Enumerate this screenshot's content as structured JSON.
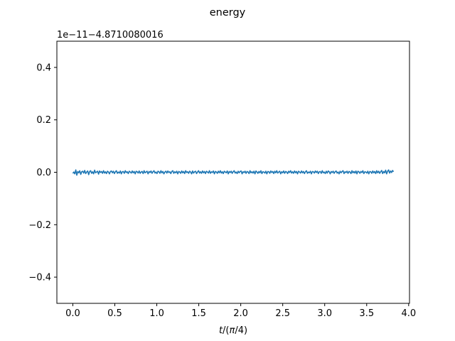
{
  "chart_data": {
    "type": "line",
    "title": "energy",
    "xlabel": "t/(π/4)",
    "ylabel": "",
    "offset_text": "1e−11−4.8710080016",
    "xlim": [
      -0.19,
      4.01
    ],
    "ylim": [
      -0.5,
      0.5
    ],
    "xticks": [
      0.0,
      0.5,
      1.0,
      1.5,
      2.0,
      2.5,
      3.0,
      3.5,
      4.0
    ],
    "xtick_labels": [
      "0.0",
      "0.5",
      "1.0",
      "1.5",
      "2.0",
      "2.5",
      "3.0",
      "3.5",
      "4.0"
    ],
    "yticks": [
      -0.4,
      -0.2,
      0.0,
      0.2,
      0.4
    ],
    "ytick_labels": [
      "−0.4",
      "−0.2",
      "0.0",
      "0.2",
      "0.4"
    ],
    "grid": false,
    "legend": "none",
    "series": [
      {
        "color": "#1f77b4",
        "x_start": 0.0,
        "x_end": 3.82,
        "values": [
          -0.004,
          0.001,
          -0.006,
          0.009,
          -0.011,
          0.003,
          -0.002,
          0.006,
          -0.008,
          0.002,
          0.004,
          -0.003,
          0.007,
          -0.005,
          0.001,
          0.005,
          -0.009,
          0.003,
          0.006,
          -0.004,
          0.002,
          -0.006,
          0.008,
          -0.002,
          0.001,
          0.004,
          -0.007,
          0.005,
          -0.001,
          0.003,
          -0.004,
          0.006,
          -0.003,
          0.002,
          -0.005,
          0.004,
          0.001,
          -0.006,
          0.003,
          0.005,
          -0.002,
          0.004,
          -0.005,
          0.002,
          0.006,
          -0.004,
          0.001,
          -0.003,
          0.005,
          -0.006,
          0.002,
          0.003,
          -0.004,
          0.006,
          -0.001,
          0.002,
          -0.005,
          0.004,
          0.001,
          -0.003,
          0.005,
          -0.002,
          0.003,
          -0.006,
          0.004,
          0.002,
          -0.003,
          0.005,
          -0.004,
          0.001,
          0.003,
          -0.005,
          0.006,
          -0.002,
          0.001,
          0.004,
          -0.006,
          0.003,
          -0.001,
          0.005,
          -0.004,
          0.002,
          0.006,
          -0.003,
          0.001,
          -0.005,
          0.004,
          0.002,
          -0.004,
          0.006,
          -0.002,
          0.003,
          -0.006,
          0.001,
          0.004,
          -0.003,
          0.005,
          -0.001,
          0.002,
          -0.005,
          0.003,
          0.006,
          -0.004,
          0.002,
          -0.002,
          0.004,
          -0.006,
          0.003,
          0.001,
          -0.004,
          0.005,
          -0.002,
          0.003,
          -0.005,
          0.006,
          -0.001,
          0.002,
          -0.004,
          0.004,
          0.001,
          -0.006,
          0.005,
          -0.003,
          0.002,
          0.004,
          -0.005,
          0.001,
          0.006,
          -0.003,
          0.002,
          -0.004,
          0.005,
          -0.002,
          0.003,
          -0.005,
          0.004,
          0.001,
          -0.003,
          0.006,
          -0.004,
          0.002,
          -0.001,
          0.005,
          -0.006,
          0.003,
          0.001,
          -0.004,
          0.004,
          -0.002,
          0.006,
          -0.003,
          0.002,
          -0.005,
          0.004,
          0.001,
          -0.002,
          0.005,
          -0.006,
          0.003,
          -0.001,
          0.004,
          -0.004,
          0.002,
          0.006,
          -0.003,
          0.001,
          -0.005,
          0.004,
          -0.002,
          0.003,
          0.005,
          -0.006,
          0.002,
          -0.001,
          0.004,
          -0.004,
          0.003,
          0.001,
          -0.005,
          0.006,
          -0.002,
          0.002,
          -0.003,
          0.004,
          -0.006,
          0.005,
          0.001,
          -0.004,
          0.003,
          -0.002,
          0.006,
          -0.005,
          0.002,
          0.001,
          -0.003,
          0.004,
          -0.006,
          0.003,
          0.002,
          -0.004,
          0.005,
          -0.001,
          0.003,
          -0.005,
          0.004,
          -0.002,
          0.006,
          -0.003,
          0.001,
          0.004,
          -0.006,
          0.002,
          -0.002,
          0.005,
          -0.004,
          0.003,
          0.001,
          -0.005,
          0.004,
          -0.001,
          0.006,
          -0.003,
          0.002,
          -0.004,
          0.005,
          -0.002,
          0.003,
          -0.006,
          0.004,
          0.001,
          -0.003,
          0.005,
          -0.002,
          0.003,
          -0.005,
          0.002,
          0.006,
          -0.004,
          0.001,
          -0.002,
          0.004,
          -0.006,
          0.003,
          0.002,
          -0.003,
          0.005,
          -0.001,
          0.004,
          -0.005,
          0.002,
          0.003,
          -0.004,
          0.006,
          -0.002,
          0.001,
          -0.005,
          0.004,
          -0.003,
          0.005,
          0.002,
          -0.006,
          0.003,
          -0.001,
          0.004,
          -0.004,
          0.002,
          0.005,
          -0.003,
          0.001,
          -0.006,
          0.004,
          -0.002,
          0.003,
          0.006,
          -0.005,
          0.002,
          -0.001,
          0.004,
          -0.004,
          0.003,
          0.001,
          -0.005,
          0.006,
          -0.002,
          0.003,
          -0.003,
          0.005,
          -0.006,
          0.004,
          0.002,
          -0.004,
          0.003,
          -0.001,
          0.006,
          -0.005,
          0.002,
          0.001,
          -0.003,
          0.004,
          -0.006,
          0.003,
          0.002,
          -0.004,
          0.005,
          -0.002,
          0.003,
          -0.005,
          0.006,
          -0.002,
          0.004,
          -0.004,
          0.002,
          0.007,
          -0.005,
          0.003,
          -0.002,
          0.008,
          -0.006,
          0.004,
          0.009,
          -0.003,
          0.005,
          -0.001,
          0.007,
          0.002
        ]
      }
    ]
  }
}
